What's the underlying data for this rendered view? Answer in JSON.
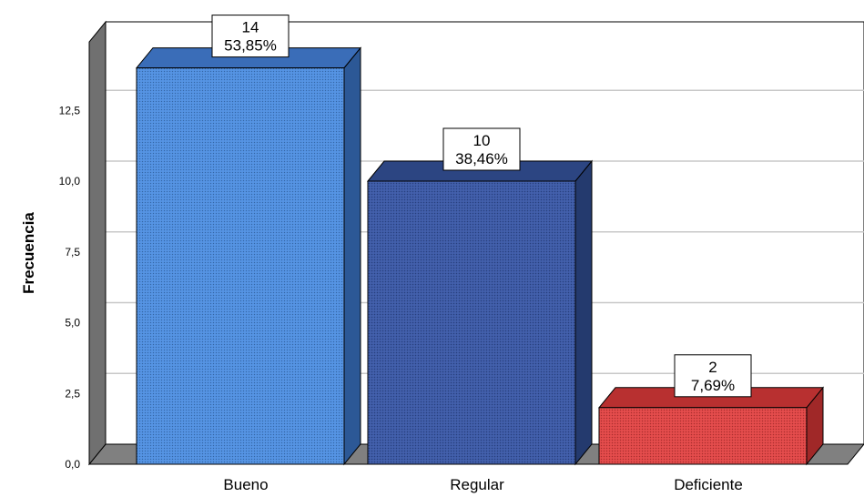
{
  "chart_data": {
    "type": "bar",
    "title": "",
    "xlabel": "",
    "ylabel": "Frecuencia",
    "categories": [
      "Bueno",
      "Regular",
      "Deficiente"
    ],
    "values": [
      14,
      10,
      2
    ],
    "percent_labels": [
      "53,85%",
      "38,46%",
      "7,69%"
    ],
    "value_labels": [
      "14",
      "10",
      "2"
    ],
    "ylim": [
      0,
      14
    ],
    "yticks": [
      0,
      2.5,
      5,
      7.5,
      10,
      12.5
    ],
    "ytick_labels": [
      "0,0",
      "2,5",
      "5,0",
      "7,5",
      "10,0",
      "12,5"
    ],
    "grid": true,
    "style": "3d",
    "colors": {
      "Bueno": {
        "front": "#4f8fe0",
        "top": "#3a6db8",
        "side": "#2c5896"
      },
      "Regular": {
        "front": "#3b59a6",
        "top": "#2c4582",
        "side": "#243a6e"
      },
      "Deficiente": {
        "front": "#e04545",
        "top": "#b83030",
        "side": "#a02828"
      }
    }
  }
}
